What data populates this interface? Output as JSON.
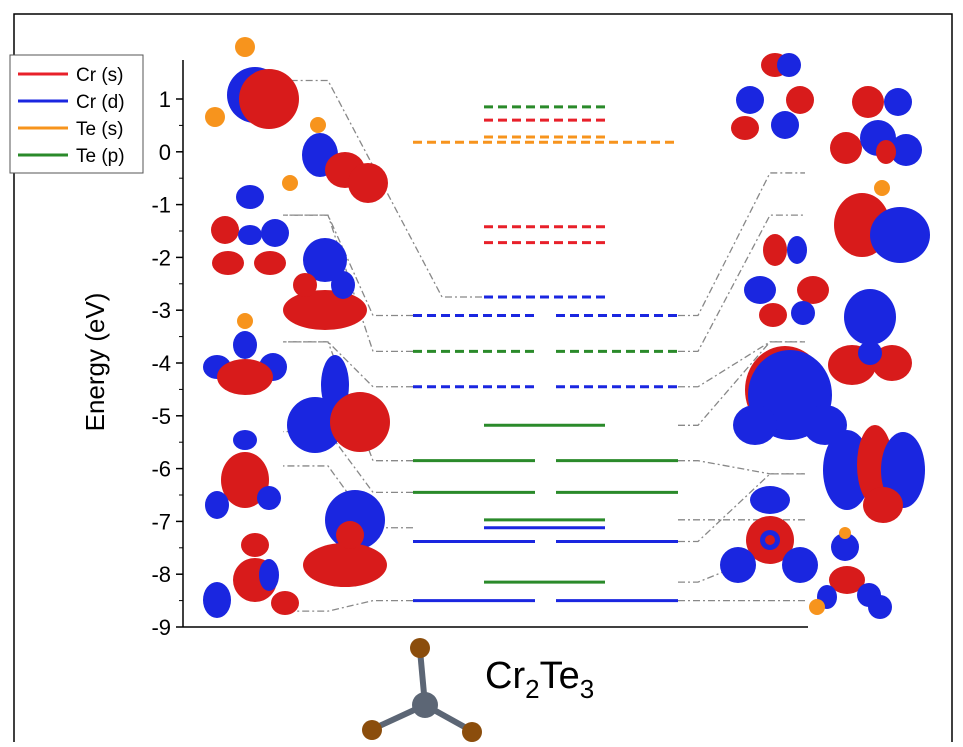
{
  "chart_data": {
    "type": "energy-level-diagram",
    "ylabel": "Energy (eV)",
    "ylim": [
      -9,
      1.3
    ],
    "yticks": [
      1,
      0,
      -1,
      -2,
      -3,
      -4,
      -5,
      -6,
      -7,
      -8,
      -9
    ],
    "legend": {
      "placement": "top-left",
      "entries": [
        {
          "name": "Cr (s)",
          "color": "#e8202a"
        },
        {
          "name": "Cr (d)",
          "color": "#1a26e0"
        },
        {
          "name": "Te (s)",
          "color": "#f7941d"
        },
        {
          "name": "Te (p)",
          "color": "#2a8a2a"
        }
      ]
    },
    "molecule_label": {
      "pre": "Cr",
      "sub1": "2",
      "mid": "Te",
      "sub2": "3"
    },
    "levels": [
      {
        "energy": 0.85,
        "orbital": "Te (p)",
        "style": "dashed",
        "span": "center"
      },
      {
        "energy": 0.6,
        "orbital": "Cr (s)",
        "style": "dashed",
        "span": "center"
      },
      {
        "energy": 0.28,
        "orbital": "Te (s)",
        "style": "dashed",
        "span": "center"
      },
      {
        "energy": 0.18,
        "orbital": "Te (s)",
        "style": "dashed",
        "span": "wide"
      },
      {
        "energy": -1.42,
        "orbital": "Cr (s)",
        "style": "dashed",
        "span": "center"
      },
      {
        "energy": -1.72,
        "orbital": "Cr (s)",
        "style": "dashed",
        "span": "center"
      },
      {
        "energy": -2.75,
        "orbital": "Cr (d)",
        "style": "dashed",
        "span": "center"
      },
      {
        "energy": -3.1,
        "orbital": "Cr (d)",
        "style": "dashed",
        "span": "wide"
      },
      {
        "energy": -3.78,
        "orbital": "Te (p)",
        "style": "dashed",
        "span": "wide"
      },
      {
        "energy": -4.45,
        "orbital": "Cr (d)",
        "style": "dashed",
        "span": "wide"
      },
      {
        "energy": -5.18,
        "orbital": "Te (p)",
        "style": "solid",
        "span": "center"
      },
      {
        "energy": -5.85,
        "orbital": "Te (p)",
        "style": "solid",
        "span": "wide"
      },
      {
        "energy": -6.45,
        "orbital": "Te (p)",
        "style": "solid",
        "span": "wide"
      },
      {
        "energy": -6.97,
        "orbital": "Te (p)",
        "style": "solid",
        "span": "center"
      },
      {
        "energy": -7.12,
        "orbital": "Cr (d)",
        "style": "solid",
        "span": "center"
      },
      {
        "energy": -7.38,
        "orbital": "Cr (d)",
        "style": "solid",
        "span": "wide"
      },
      {
        "energy": -8.15,
        "orbital": "Te (p)",
        "style": "solid",
        "span": "center"
      },
      {
        "energy": -8.5,
        "orbital": "Cr (d)",
        "style": "solid",
        "span": "wide"
      }
    ],
    "connectors": [
      {
        "level_energy": -2.75,
        "side": "left",
        "orbital_energy": 1.35
      },
      {
        "level_energy": -3.1,
        "side": "left",
        "orbital_energy": -1.2
      },
      {
        "level_energy": -3.78,
        "side": "left",
        "orbital_energy": -1.2
      },
      {
        "level_energy": -4.45,
        "side": "left",
        "orbital_energy": -3.6
      },
      {
        "level_energy": -5.85,
        "side": "left",
        "orbital_energy": -3.6
      },
      {
        "level_energy": -6.45,
        "side": "left",
        "orbital_energy": -5.3
      },
      {
        "level_energy": -7.12,
        "side": "left",
        "orbital_energy": -5.95
      },
      {
        "level_energy": -8.5,
        "side": "left",
        "orbital_energy": -8.7
      },
      {
        "level_energy": -3.1,
        "side": "right",
        "orbital_energy": -0.4
      },
      {
        "level_energy": -3.78,
        "side": "right",
        "orbital_energy": -1.2
      },
      {
        "level_energy": -4.45,
        "side": "right",
        "orbital_energy": -3.6
      },
      {
        "level_energy": -5.18,
        "side": "right",
        "orbital_energy": -3.6
      },
      {
        "level_energy": -5.85,
        "side": "right",
        "orbital_energy": -6.1
      },
      {
        "level_energy": -6.97,
        "side": "right",
        "orbital_energy": -6.97
      },
      {
        "level_energy": -7.38,
        "side": "right",
        "orbital_energy": -6.1
      },
      {
        "level_energy": -8.15,
        "side": "right",
        "orbital_energy": -7.6
      },
      {
        "level_energy": -8.5,
        "side": "right",
        "orbital_energy": -8.5
      }
    ]
  }
}
